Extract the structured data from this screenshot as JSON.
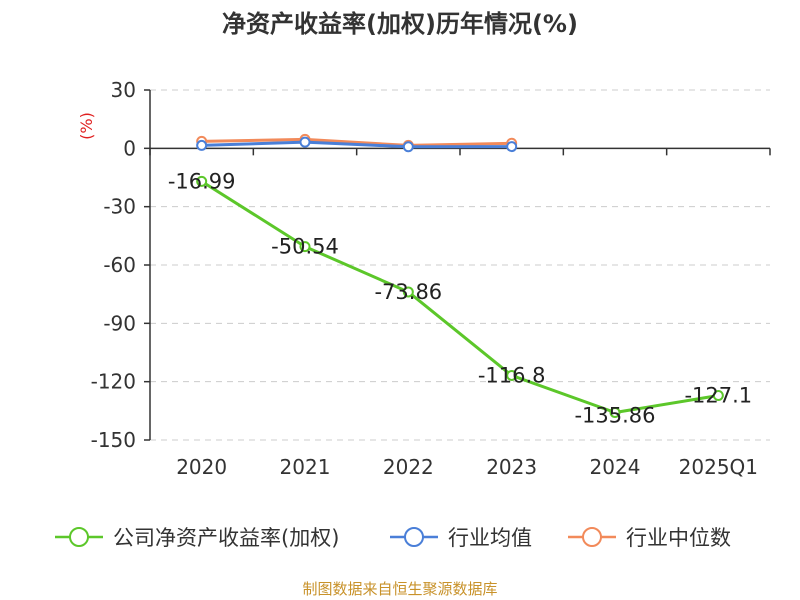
{
  "chart_data": {
    "type": "line",
    "title": "净资产收益率(加权)历年情况(%)",
    "ylabel": "(%)",
    "categories": [
      "2020",
      "2021",
      "2022",
      "2023",
      "2024",
      "2025Q1"
    ],
    "ylim": [
      -150,
      30
    ],
    "yticks": [
      30,
      0,
      -30,
      -60,
      -90,
      -120,
      -150
    ],
    "grid": true,
    "legend_position": "bottom",
    "series": [
      {
        "name": "公司净资产收益率(加权)",
        "color": "#5cc72a",
        "values": [
          -16.99,
          -50.54,
          -73.86,
          -116.8,
          -135.86,
          -127.1
        ],
        "labels": [
          "-16.99",
          "-50.54",
          "-73.86",
          "-116.8",
          "-135.86",
          "-127.1"
        ]
      },
      {
        "name": "行业均值",
        "color": "#4a7fd8",
        "values": [
          1.5,
          3.2,
          0.8,
          0.9,
          null,
          null
        ]
      },
      {
        "name": "行业中位数",
        "color": "#f28a5a",
        "values": [
          3.6,
          4.6,
          1.5,
          2.6,
          null,
          null
        ]
      }
    ],
    "source": "制图数据来自恒生聚源数据库"
  }
}
